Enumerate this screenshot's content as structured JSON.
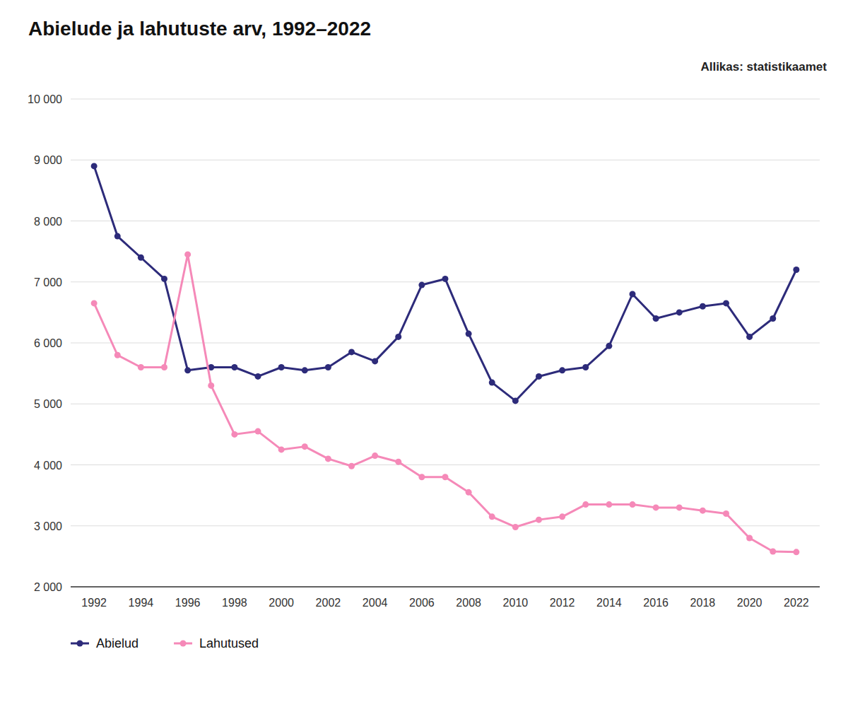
{
  "chart_data": {
    "type": "line",
    "title": "Abielude ja lahutuste arv, 1992–2022",
    "annotations": [
      "Allikas: statistikaamet"
    ],
    "x": [
      1992,
      1993,
      1994,
      1995,
      1996,
      1997,
      1998,
      1999,
      2000,
      2001,
      2002,
      2003,
      2004,
      2005,
      2006,
      2007,
      2008,
      2009,
      2010,
      2011,
      2012,
      2013,
      2014,
      2015,
      2016,
      2017,
      2018,
      2019,
      2020,
      2021,
      2022
    ],
    "series": [
      {
        "name": "Abielud",
        "color": "#2d2b7a",
        "marker": "circle",
        "values": [
          8900,
          7750,
          7400,
          7050,
          5550,
          5600,
          5600,
          5450,
          5600,
          5550,
          5600,
          5850,
          5700,
          6100,
          6950,
          7050,
          6150,
          5350,
          5050,
          5450,
          5550,
          5600,
          5950,
          6800,
          6400,
          6500,
          6600,
          6650,
          6100,
          6400,
          7200
        ]
      },
      {
        "name": "Lahutused",
        "color": "#f589b8",
        "marker": "circle",
        "values": [
          6650,
          5800,
          5600,
          5600,
          7450,
          5300,
          4500,
          4550,
          4250,
          4300,
          4100,
          3980,
          4150,
          4050,
          3800,
          3800,
          3550,
          3150,
          2980,
          3100,
          3150,
          3350,
          3350,
          3350,
          3300,
          3300,
          3250,
          3200,
          2800,
          2580,
          2570
        ]
      }
    ],
    "xlim": [
      1991,
      2023
    ],
    "xticks": [
      1992,
      1994,
      1996,
      1998,
      2000,
      2002,
      2004,
      2006,
      2008,
      2010,
      2012,
      2014,
      2016,
      2018,
      2020,
      2022
    ],
    "ylim": [
      2000,
      10000
    ],
    "yticks": [
      {
        "value": 2000,
        "label": "2 000"
      },
      {
        "value": 3000,
        "label": "3 000"
      },
      {
        "value": 4000,
        "label": "4 000"
      },
      {
        "value": 5000,
        "label": "5 000"
      },
      {
        "value": 6000,
        "label": "6 000"
      },
      {
        "value": 7000,
        "label": "7 000"
      },
      {
        "value": 8000,
        "label": "8 000"
      },
      {
        "value": 9000,
        "label": "9 000"
      },
      {
        "value": 10000,
        "label": "10 000"
      }
    ],
    "grid": true,
    "legend": "bottom"
  }
}
